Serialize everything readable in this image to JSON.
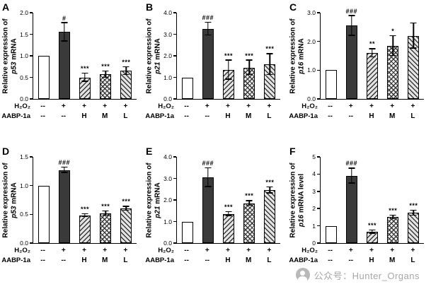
{
  "figure": {
    "watermark": {
      "icon": "wechat-official-account-icon",
      "text": "公众号：Hunter_Organs"
    }
  },
  "bar_styles": [
    "open-white",
    "solid-dark",
    "hatch-forward",
    "hatch-cross",
    "hatch-backward"
  ],
  "chart_data": [
    {
      "panel": "A",
      "type": "bar",
      "ylabel_line1": "Relative expression of",
      "gene": "p53",
      "ylabel_line2_suffix": " mRNA",
      "ylim": [
        0,
        2.0
      ],
      "yticks": [
        0,
        0.5,
        1.0,
        1.5,
        2.0
      ],
      "ytick_decimals": 1,
      "categories_rows": [
        {
          "label": "H₂O₂",
          "values": [
            "--",
            "+",
            "+",
            "+",
            "+"
          ]
        },
        {
          "label": "AABP-1a",
          "values": [
            "--",
            "--",
            "H",
            "M",
            "L"
          ]
        }
      ],
      "values": [
        1.0,
        1.55,
        0.5,
        0.57,
        0.65
      ],
      "errors": [
        0,
        0.22,
        0.1,
        0.08,
        0.1
      ],
      "significance": [
        "",
        "#",
        "***",
        "***",
        "***"
      ]
    },
    {
      "panel": "B",
      "type": "bar",
      "ylabel_line1": "Relative expression of",
      "gene": "p21",
      "ylabel_line2_suffix": " mRNA",
      "ylim": [
        0,
        4.0
      ],
      "yticks": [
        0,
        1.0,
        2.0,
        3.0,
        4.0
      ],
      "ytick_decimals": 1,
      "categories_rows": [
        {
          "label": "H₂O₂",
          "values": [
            "--",
            "+",
            "+",
            "+",
            "+"
          ]
        },
        {
          "label": "AABP-1a",
          "values": [
            "--",
            "--",
            "H",
            "M",
            "L"
          ]
        }
      ],
      "values": [
        1.0,
        3.25,
        1.35,
        1.45,
        1.6
      ],
      "errors": [
        0,
        0.3,
        0.45,
        0.35,
        0.5
      ],
      "significance": [
        "",
        "###",
        "***",
        "***",
        "***"
      ]
    },
    {
      "panel": "C",
      "type": "bar",
      "ylabel_line1": "Relative expression of",
      "gene": "p16",
      "ylabel_line2_suffix": " mRNA",
      "ylim": [
        0,
        3.0
      ],
      "yticks": [
        0,
        1.0,
        2.0,
        3.0
      ],
      "ytick_decimals": 1,
      "categories_rows": [
        {
          "label": "H₂O₂",
          "values": [
            "--",
            "+",
            "+",
            "+",
            "+"
          ]
        },
        {
          "label": "AABP-1a",
          "values": [
            "--",
            "--",
            "H",
            "M",
            "L"
          ]
        }
      ],
      "values": [
        1.0,
        2.55,
        1.6,
        1.85,
        2.2
      ],
      "errors": [
        0,
        0.35,
        0.15,
        0.35,
        0.45
      ],
      "significance": [
        "",
        "###",
        "**",
        "*",
        ""
      ]
    },
    {
      "panel": "D",
      "type": "bar",
      "ylabel_line1": "Relative expression of",
      "gene": "p53",
      "ylabel_line2_suffix": " mRNA",
      "ylim": [
        0,
        1.5
      ],
      "yticks": [
        0,
        0.5,
        1.0,
        1.5
      ],
      "ytick_decimals": 1,
      "categories_rows": [
        {
          "label": "H₂O₂",
          "values": [
            "--",
            "+",
            "+",
            "+",
            "+"
          ]
        },
        {
          "label": "AABP-1a",
          "values": [
            "--",
            "--",
            "H",
            "M",
            "L"
          ]
        }
      ],
      "values": [
        1.0,
        1.27,
        0.48,
        0.52,
        0.6
      ],
      "errors": [
        0,
        0.05,
        0.03,
        0.04,
        0.04
      ],
      "significance": [
        "",
        "###",
        "***",
        "***",
        "***"
      ]
    },
    {
      "panel": "E",
      "type": "bar",
      "ylabel_line1": "Relative expression of",
      "gene": "p21",
      "ylabel_line2_suffix": " mRNA",
      "ylim": [
        0,
        4.0
      ],
      "yticks": [
        0,
        1.0,
        2.0,
        3.0,
        4.0
      ],
      "ytick_decimals": 1,
      "categories_rows": [
        {
          "label": "H₂O₂",
          "values": [
            "--",
            "+",
            "+",
            "+",
            "+"
          ]
        },
        {
          "label": "AABP-1a",
          "values": [
            "--",
            "--",
            "H",
            "M",
            "L"
          ]
        }
      ],
      "values": [
        1.0,
        3.05,
        1.35,
        1.85,
        2.45
      ],
      "errors": [
        0,
        0.45,
        0.1,
        0.12,
        0.15
      ],
      "significance": [
        "",
        "###",
        "***",
        "***",
        "***"
      ]
    },
    {
      "panel": "F",
      "type": "bar",
      "ylabel_line1": "Relative expression of",
      "gene": "p16",
      "ylabel_line2_suffix": " mRNA level",
      "ylim": [
        0,
        5
      ],
      "yticks": [
        0,
        1,
        2,
        3,
        4,
        5
      ],
      "ytick_decimals": 0,
      "categories_rows": [
        {
          "label": "H₂O₂",
          "values": [
            "--",
            "+",
            "+",
            "+",
            "+"
          ]
        },
        {
          "label": "AABP-1a",
          "values": [
            "--",
            "--",
            "H",
            "M",
            "L"
          ]
        }
      ],
      "values": [
        1.0,
        3.9,
        0.65,
        1.5,
        1.75
      ],
      "errors": [
        0,
        0.45,
        0.1,
        0.12,
        0.15
      ],
      "significance": [
        "",
        "###",
        "***",
        "***",
        "***"
      ]
    }
  ]
}
